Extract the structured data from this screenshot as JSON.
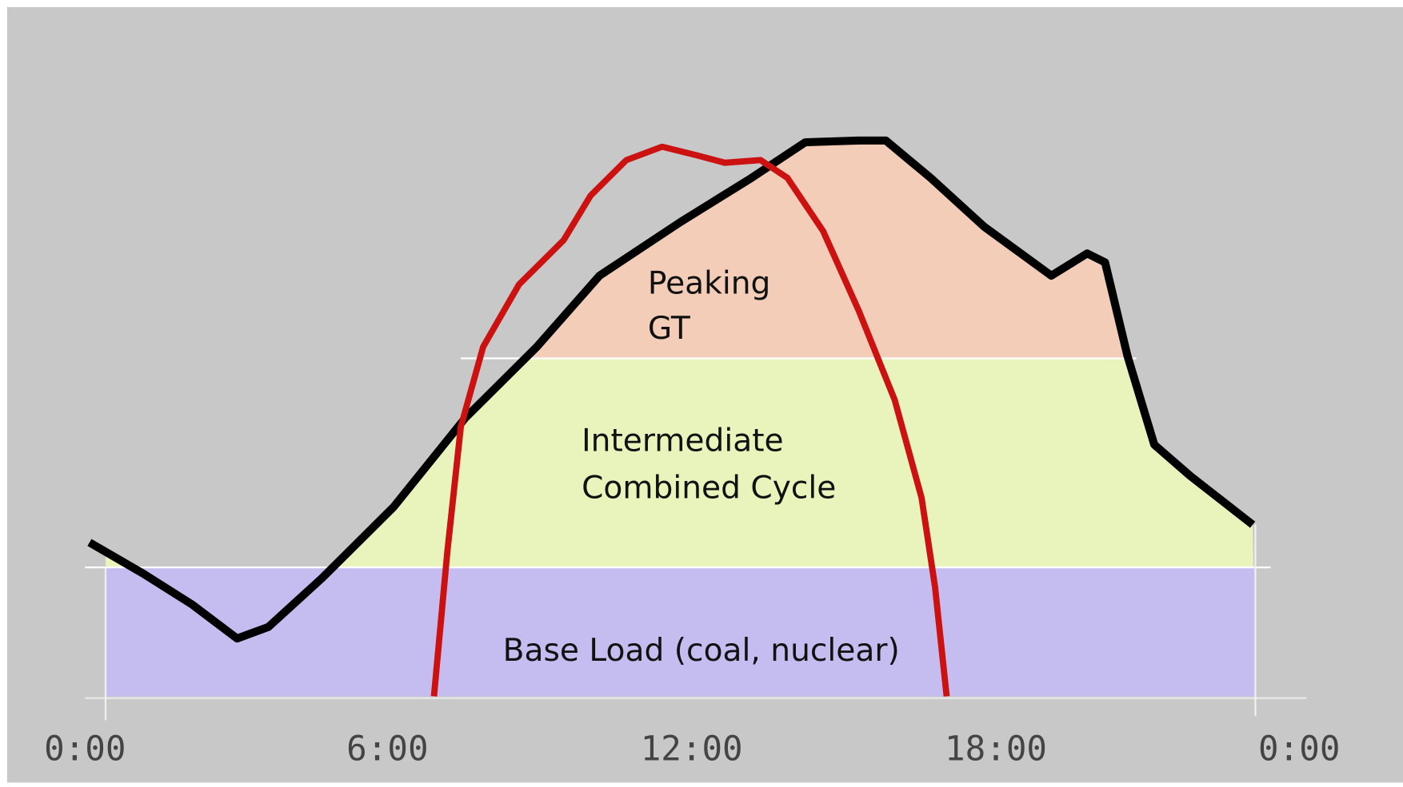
{
  "regions": {
    "peaking": [
      "Peaking",
      "GT"
    ],
    "intermediate": [
      "Intermediate",
      "Combined Cycle"
    ],
    "base": "Base Load (coal, nuclear)"
  },
  "x_axis": {
    "ticks": [
      "0:00",
      "6:00",
      "12:00",
      "18:00",
      "0:00"
    ]
  }
}
